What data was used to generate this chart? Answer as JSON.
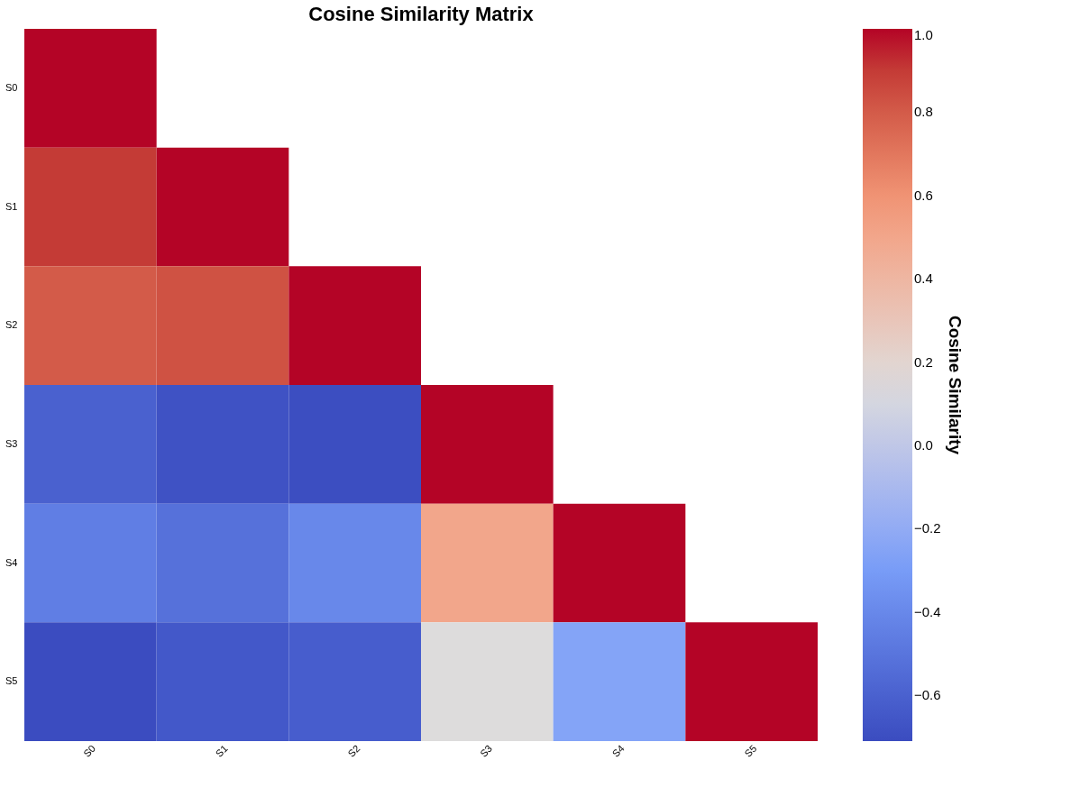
{
  "chart_data": {
    "type": "heatmap",
    "title": "Cosine Similarity Matrix",
    "clabel": "Cosine Similarity",
    "categories": [
      "S0",
      "S1",
      "S2",
      "S3",
      "S4",
      "S5"
    ],
    "y_categories": [
      "S0",
      "S1",
      "S2",
      "S3",
      "S4",
      "S5"
    ],
    "cells": [
      [
        1.0,
        null,
        null,
        null,
        null,
        null
      ],
      [
        0.9,
        1.0,
        null,
        null,
        null,
        null
      ],
      [
        0.8,
        0.83,
        1.0,
        null,
        null,
        null
      ],
      [
        -0.6,
        -0.68,
        -0.7,
        1.0,
        null,
        null
      ],
      [
        -0.45,
        -0.52,
        -0.4,
        0.5,
        1.0,
        null
      ],
      [
        -0.71,
        -0.65,
        -0.62,
        0.15,
        -0.25,
        1.0
      ]
    ],
    "clim": [
      -0.71,
      1.0
    ],
    "cticks": [
      -0.6,
      -0.4,
      -0.2,
      {
        "value": 0,
        "label": "0.0"
      },
      0.2,
      0.4,
      0.6,
      0.8,
      {
        "value": 1,
        "label": "1.0"
      }
    ]
  }
}
